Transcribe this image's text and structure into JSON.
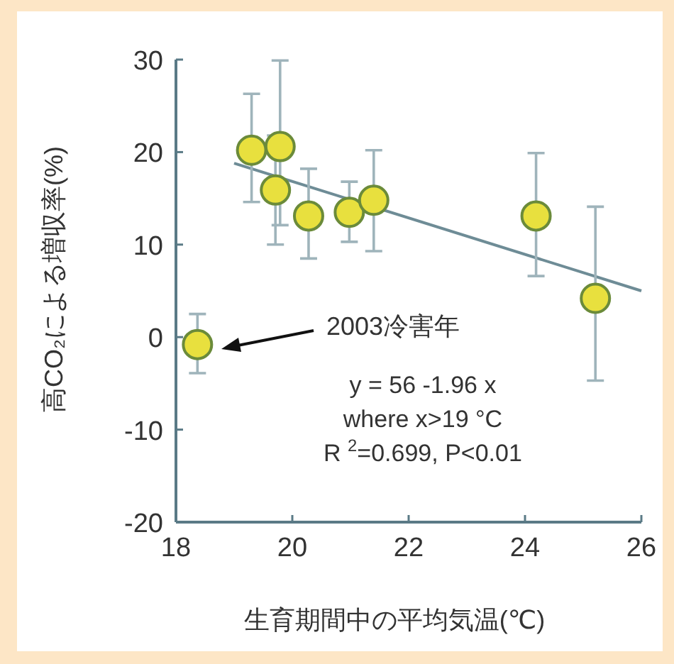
{
  "chart_data": {
    "type": "scatter",
    "xlabel": "生育期間中の平均気温(℃)",
    "ylabel": "高CO₂による増収率(%)",
    "xlim": [
      18,
      26
    ],
    "xticks": [
      18,
      20,
      22,
      24,
      26
    ],
    "ylim": [
      -20,
      30
    ],
    "yticks": [
      -20,
      -10,
      0,
      10,
      20,
      30
    ],
    "grid": false,
    "series": [
      {
        "marker": "circle",
        "color": "#e8e03e",
        "x": [
          18.37,
          19.3,
          19.79,
          19.71,
          20.28,
          20.98,
          21.4,
          24.19,
          25.21
        ],
        "values": [
          -0.8,
          20.2,
          20.6,
          15.9,
          13.1,
          13.5,
          14.8,
          13.1,
          4.2
        ],
        "errors": [
          [
            -3.9,
            2.5
          ],
          [
            14.6,
            26.3
          ],
          [
            12.1,
            29.9
          ],
          [
            10.0,
            21.8
          ],
          [
            8.5,
            18.2
          ],
          [
            10.3,
            16.8
          ],
          [
            9.3,
            20.2
          ],
          [
            6.6,
            19.9
          ],
          [
            -4.7,
            14.1
          ]
        ]
      },
      {
        "type": "line",
        "color": "#6e8c96",
        "x": [
          19,
          26
        ],
        "values": [
          18.8,
          5.0
        ]
      }
    ],
    "annotations": [
      "2003冷害年",
      "y = 56 -1.96 x",
      "where x>19 °C",
      "R $^{2}$=0.699, P<0.01"
    ]
  }
}
